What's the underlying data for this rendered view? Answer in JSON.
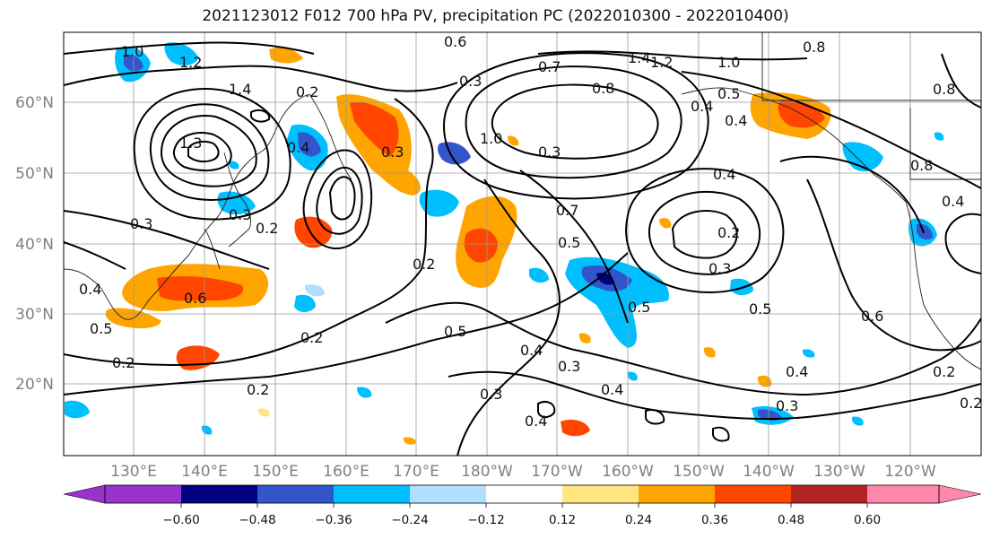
{
  "title": "2021123012 F012 700 hPa PV, precipitation PC (2022010300 - 2022010400)",
  "lat_labels": [
    "60°N",
    "50°N",
    "40°N",
    "30°N",
    "20°N"
  ],
  "lon_labels": [
    "130°E",
    "140°E",
    "150°E",
    "160°E",
    "170°E",
    "180°W",
    "170°W",
    "160°W",
    "150°W",
    "140°W",
    "130°W",
    "120°W"
  ],
  "colorbar": {
    "colors": [
      "#9933cc",
      "#000080",
      "#3355cc",
      "#00bfff",
      "#b0e0ff",
      "#ffffff",
      "#ffe680",
      "#ffa500",
      "#ff4500",
      "#b22222",
      "#ff88aa"
    ],
    "ticks": [
      "−0.60",
      "−0.48",
      "−0.36",
      "−0.24",
      "−0.12",
      "0.12",
      "0.24",
      "0.36",
      "0.48",
      "0.60"
    ]
  },
  "contour_labels": [
    "1.0",
    "1.2",
    "0.6",
    "1.4",
    "1.2",
    "1.0",
    "0.8",
    "0.7",
    "0.8",
    "0.3",
    "0.4",
    "0.5",
    "0.4",
    "1.4",
    "1.3",
    "0.4",
    "0.3",
    "0.2",
    "0.2",
    "0.3",
    "0.4",
    "0.5",
    "0.6",
    "0.7",
    "0.5",
    "0.4",
    "0.3",
    "0.2",
    "0.3",
    "0.4",
    "0.5",
    "0.6",
    "0.4",
    "0.3",
    "0.2",
    "0.2",
    "0.4",
    "0.3",
    "0.2",
    "0.5",
    "0.4",
    "0.3",
    "0.2",
    "1.0",
    "0.8",
    "0.4",
    "0.8",
    "0.2",
    "0.3",
    "0.5",
    "0.2"
  ]
}
